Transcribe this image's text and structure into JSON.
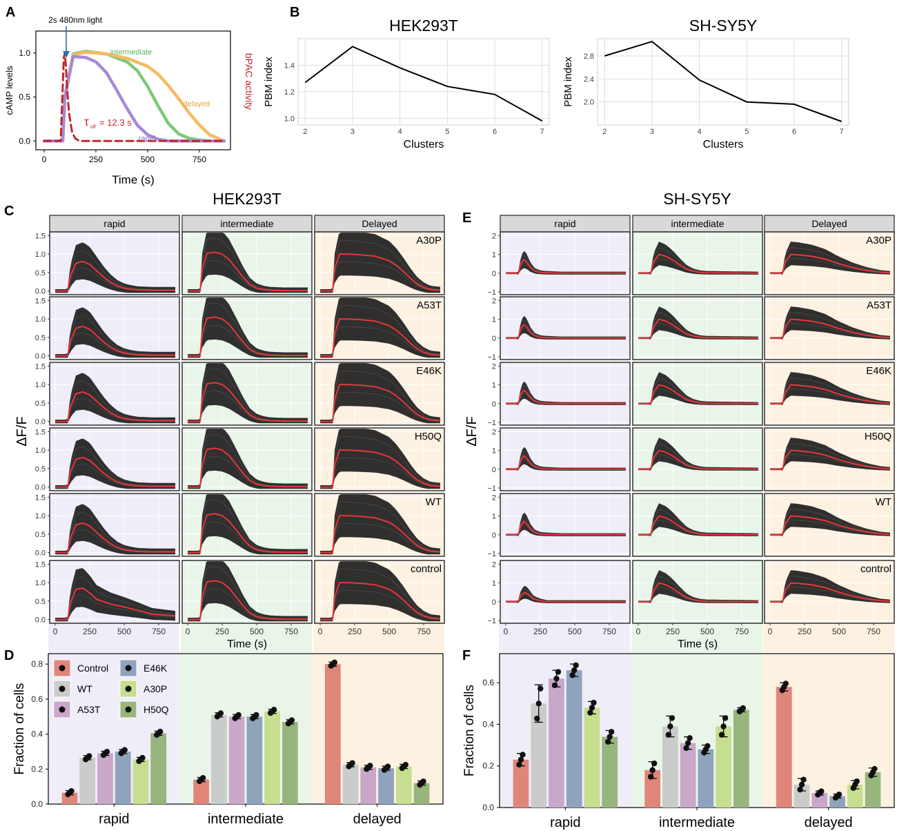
{
  "figure": {
    "panel_letters": [
      "A",
      "B",
      "C",
      "D",
      "E",
      "F"
    ],
    "strip_labels": [
      "rapid",
      "intermediate",
      "Delayed"
    ],
    "row_labels": [
      "A30P",
      "A53T",
      "E46K",
      "H50Q",
      "WT",
      "control"
    ],
    "trace_ylabel": "ΔF/F",
    "time_label": "Time (s)",
    "fraction_ylabel": "Fraction of cells",
    "colors": {
      "trace": "#1e1e1e",
      "mean_line": "#e8363a",
      "rapid_bg": "#efedf8",
      "intermediate_bg": "#eaf5ea",
      "delayed_bg": "#fdf1e1",
      "strip_bg": "#d9d9d9"
    }
  },
  "chart_data": [
    {
      "id": "A",
      "type": "line",
      "xlabel": "Time (s)",
      "ylabel": "cAMP levels",
      "ylabel_right": "bPAC activity",
      "xticks": [
        "0",
        "250",
        "500",
        "750"
      ],
      "yticks": [
        "0.0",
        "0.5",
        "1.0"
      ],
      "xlim": [
        -40,
        900
      ],
      "ylim": [
        -0.1,
        1.25
      ],
      "annotations": {
        "stimulus": "2s 480nm light",
        "tau_symbol": "τ",
        "tau_sub": "off",
        "tau_value": "= 12.3 s"
      },
      "series": [
        {
          "name": "intermediate",
          "color": "#7cc97c",
          "x": [
            0,
            90,
            100,
            140,
            200,
            300,
            400,
            450,
            500,
            550,
            600,
            650,
            700,
            750,
            800,
            870
          ],
          "y": [
            0,
            0,
            0.5,
            0.99,
            1.02,
            0.99,
            0.9,
            0.8,
            0.62,
            0.4,
            0.2,
            0.08,
            0.03,
            0.01,
            0,
            0
          ]
        },
        {
          "name": "delayed",
          "color": "#f7b961",
          "x": [
            0,
            90,
            100,
            140,
            200,
            300,
            400,
            500,
            550,
            600,
            650,
            700,
            750,
            800,
            850,
            870
          ],
          "y": [
            0,
            0,
            0.5,
            0.98,
            1.01,
            0.99,
            0.94,
            0.85,
            0.76,
            0.63,
            0.48,
            0.32,
            0.18,
            0.07,
            0.02,
            0
          ]
        },
        {
          "name": "rapid",
          "color": "#a78ad6",
          "x": [
            0,
            90,
            100,
            140,
            200,
            250,
            300,
            350,
            400,
            450,
            500,
            550,
            600,
            700,
            870
          ],
          "y": [
            0,
            0,
            0.5,
            0.96,
            0.95,
            0.9,
            0.78,
            0.58,
            0.37,
            0.18,
            0.07,
            0.02,
            0,
            0,
            0
          ]
        },
        {
          "name": "bPAC",
          "color": "#c0272d",
          "dashed": true,
          "x": [
            0,
            80,
            95,
            100,
            105,
            110,
            120,
            135,
            150,
            170,
            870
          ],
          "y": [
            0,
            0,
            0.95,
            1.0,
            0.85,
            0.62,
            0.32,
            0.1,
            0.03,
            0,
            0
          ]
        }
      ]
    },
    {
      "id": "B1",
      "type": "line",
      "title": "HEK293T",
      "xlabel": "Clusters",
      "ylabel": "PBM index",
      "x": [
        2,
        3,
        4,
        5,
        6,
        7
      ],
      "values": [
        1.27,
        1.54,
        1.38,
        1.24,
        1.18,
        0.98
      ],
      "yticks": [
        "1.0",
        "1.2",
        "1.4"
      ],
      "ylim": [
        0.95,
        1.6
      ]
    },
    {
      "id": "B2",
      "type": "line",
      "title": "SH-SY5Y",
      "xlabel": "Clusters",
      "ylabel": "PBM index",
      "x": [
        2,
        3,
        4,
        5,
        6,
        7
      ],
      "values": [
        2.8,
        3.05,
        2.38,
        2.0,
        1.96,
        1.66
      ],
      "yticks": [
        "2.0",
        "2.4",
        "2.8"
      ],
      "ylim": [
        1.6,
        3.1
      ]
    },
    {
      "id": "C",
      "type": "line",
      "title": "HEK293T",
      "yticks": [
        "0.0",
        "0.5",
        "1.0",
        "1.5"
      ],
      "ylim": [
        -0.1,
        1.6
      ],
      "xticks": [
        "0",
        "250",
        "500",
        "750"
      ],
      "xlim": [
        -40,
        900
      ],
      "mean_curves": {
        "rapid": {
          "x": [
            0,
            90,
            110,
            150,
            200,
            250,
            300,
            350,
            400,
            450,
            500,
            550,
            600,
            700,
            870
          ],
          "y": [
            0,
            0,
            0.4,
            0.75,
            0.8,
            0.72,
            0.55,
            0.38,
            0.24,
            0.14,
            0.08,
            0.05,
            0.03,
            0.02,
            0.02
          ]
        },
        "intermediate": {
          "x": [
            0,
            90,
            105,
            140,
            200,
            250,
            300,
            350,
            400,
            450,
            500,
            550,
            600,
            700,
            870
          ],
          "y": [
            0,
            0,
            0.6,
            1.02,
            1.05,
            1.0,
            0.85,
            0.62,
            0.38,
            0.18,
            0.08,
            0.04,
            0.02,
            0.01,
            0.01
          ]
        },
        "delayed": {
          "x": [
            0,
            90,
            105,
            140,
            200,
            300,
            400,
            500,
            550,
            600,
            650,
            700,
            750,
            800,
            870
          ],
          "y": [
            0,
            0,
            0.6,
            1.0,
            1.0,
            0.98,
            0.94,
            0.82,
            0.7,
            0.54,
            0.36,
            0.2,
            0.1,
            0.04,
            0.02
          ]
        },
        "control_rapid": {
          "x": [
            0,
            90,
            110,
            150,
            200,
            250,
            300,
            400,
            500,
            600,
            700,
            870
          ],
          "y": [
            0,
            0,
            0.45,
            0.82,
            0.85,
            0.72,
            0.55,
            0.42,
            0.34,
            0.25,
            0.15,
            0.1
          ]
        }
      }
    },
    {
      "id": "E",
      "type": "line",
      "title": "SH-SY5Y",
      "yticks": [
        "−1",
        "0",
        "1",
        "2"
      ],
      "ylim": [
        -1.15,
        2.2
      ],
      "xticks": [
        "0",
        "250",
        "500",
        "750"
      ],
      "xlim": [
        -40,
        900
      ],
      "mean_curves": {
        "rapid": {
          "x": [
            0,
            90,
            110,
            130,
            150,
            180,
            210,
            250,
            300,
            400,
            870
          ],
          "y": [
            0,
            0,
            0.5,
            0.72,
            0.6,
            0.3,
            0.12,
            0.04,
            0.02,
            0,
            0
          ]
        },
        "intermediate": {
          "x": [
            0,
            90,
            110,
            150,
            200,
            250,
            300,
            350,
            400,
            450,
            500,
            870
          ],
          "y": [
            0,
            0,
            0.6,
            1.0,
            0.9,
            0.7,
            0.45,
            0.22,
            0.1,
            0.04,
            0.02,
            0
          ]
        },
        "delayed": {
          "x": [
            0,
            90,
            110,
            150,
            200,
            300,
            400,
            500,
            600,
            700,
            800,
            870
          ],
          "y": [
            0,
            0,
            0.6,
            1.0,
            0.98,
            0.9,
            0.75,
            0.5,
            0.3,
            0.15,
            0.05,
            0.02
          ]
        },
        "control_rapid": {
          "x": [
            0,
            90,
            110,
            140,
            170,
            200,
            250,
            300,
            870
          ],
          "y": [
            0,
            0,
            0.35,
            0.5,
            0.35,
            0.15,
            0.05,
            0,
            0
          ]
        }
      }
    },
    {
      "id": "D",
      "type": "bar",
      "categories": [
        "rapid",
        "intermediate",
        "delayed"
      ],
      "ylabel": "Fraction of cells",
      "yticks": [
        "0.0",
        "0.2",
        "0.4",
        "0.6",
        "0.8"
      ],
      "ylim": [
        0,
        0.86
      ],
      "legend": [
        "Control",
        "WT",
        "A53T",
        "E46K",
        "A30P",
        "H50Q"
      ],
      "legend_colors": [
        "#e0857a",
        "#c9ccca",
        "#c9a7c9",
        "#8fa3bd",
        "#c7dd8f",
        "#99b57e"
      ],
      "series": [
        {
          "name": "Control",
          "values": [
            0.065,
            0.14,
            0.8
          ],
          "color": "#e0857a"
        },
        {
          "name": "WT",
          "values": [
            0.265,
            0.51,
            0.225
          ],
          "color": "#c9ccca"
        },
        {
          "name": "A53T",
          "values": [
            0.29,
            0.5,
            0.21
          ],
          "color": "#c9a7c9"
        },
        {
          "name": "E46K",
          "values": [
            0.3,
            0.5,
            0.205
          ],
          "color": "#8fa3bd"
        },
        {
          "name": "A30P",
          "values": [
            0.255,
            0.53,
            0.215
          ],
          "color": "#c7dd8f"
        },
        {
          "name": "H50Q",
          "values": [
            0.405,
            0.47,
            0.12
          ],
          "color": "#99b57e"
        }
      ]
    },
    {
      "id": "F",
      "type": "bar",
      "categories": [
        "rapid",
        "intermediate",
        "delayed"
      ],
      "ylabel": "Fraction of cells",
      "yticks": [
        "0.0",
        "0.2",
        "0.4",
        "0.6"
      ],
      "ylim": [
        0,
        0.74
      ],
      "series": [
        {
          "name": "Control",
          "values": [
            0.23,
            0.18,
            0.58
          ],
          "errors": [
            0.03,
            0.04,
            0.02
          ],
          "color": "#e0857a"
        },
        {
          "name": "WT",
          "values": [
            0.5,
            0.39,
            0.11
          ],
          "errors": [
            0.09,
            0.05,
            0.03
          ],
          "color": "#c9ccca"
        },
        {
          "name": "A53T",
          "values": [
            0.62,
            0.31,
            0.07
          ],
          "errors": [
            0.04,
            0.03,
            0.01
          ],
          "color": "#c9a7c9"
        },
        {
          "name": "E46K",
          "values": [
            0.66,
            0.28,
            0.055
          ],
          "errors": [
            0.03,
            0.02,
            0.01
          ],
          "color": "#8fa3bd"
        },
        {
          "name": "A30P",
          "values": [
            0.48,
            0.39,
            0.11
          ],
          "errors": [
            0.03,
            0.05,
            0.02
          ],
          "color": "#c7dd8f"
        },
        {
          "name": "H50Q",
          "values": [
            0.34,
            0.47,
            0.17
          ],
          "errors": [
            0.03,
            0.01,
            0.02
          ],
          "color": "#99b57e"
        }
      ]
    }
  ]
}
